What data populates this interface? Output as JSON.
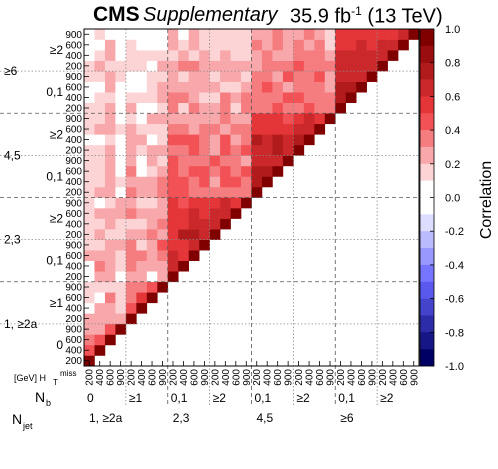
{
  "header": {
    "experiment": "CMS",
    "label": "Supplementary",
    "lumi_value": "35.9 fb",
    "lumi_exp": "-1",
    "energy": "(13 TeV)"
  },
  "chart_data": {
    "type": "heatmap",
    "colorbar": {
      "label": "Correlation",
      "range": [
        -1.0,
        1.0
      ],
      "ticks": [
        "1.0",
        "0.8",
        "0.6",
        "0.4",
        "0.2",
        "0.0",
        "-0.2",
        "-0.4",
        "-0.6",
        "-0.8",
        "-1.0"
      ]
    },
    "axis_labels": {
      "ht_label": "[GeV] H",
      "ht_sub": "T",
      "ht_sup": "miss",
      "nb_label": "N",
      "nb_sub": "b",
      "njet_label": "N",
      "njet_sub": "jet"
    },
    "ht_bins": [
      "200",
      "400",
      "600",
      "900"
    ],
    "x_nb_labels": [
      "0",
      "≥1",
      "0,1",
      "≥2",
      "0,1",
      "≥2",
      "0,1",
      "≥2"
    ],
    "x_njet_labels": [
      "1, ≥2a",
      "2,3",
      "4,5",
      "≥6"
    ],
    "y_nb_labels": [
      "≥2",
      "0,1",
      "≥2",
      "0,1",
      "≥2",
      "0,1",
      "≥1",
      "0"
    ],
    "y_njet_labels": [
      "≥6",
      "4,5",
      "2,3",
      "1, ≥2a"
    ],
    "matrix": [
      [
        1.0,
        0.46,
        0.3,
        0.23,
        0.24,
        0.04,
        0.11,
        0.15,
        0.06,
        0.07,
        0.2,
        0.15,
        0.12,
        0.17,
        0.15,
        0.16,
        0.12,
        0.11,
        0.15,
        0.11,
        0.14,
        0.08,
        0.11,
        0.14,
        0.11,
        0.07,
        0.06,
        0.15,
        0.11,
        0.04,
        0.06,
        0.05
      ],
      [
        0.46,
        1.0,
        0.4,
        0.28,
        0.24,
        0.28,
        0.07,
        0.18,
        0.25,
        0.36,
        0.23,
        0.14,
        0.27,
        0.16,
        0.28,
        0.09,
        0.26,
        0.12,
        0.1,
        0.12,
        0.16,
        0.07,
        0.23,
        0.15,
        0.16,
        0.17,
        0.05,
        0.12,
        0.23,
        0.11,
        0.08,
        0.11
      ],
      [
        0.3,
        0.4,
        1.0,
        0.48,
        0.28,
        0.21,
        0.31,
        0.19,
        0.24,
        0.26,
        0.28,
        0.23,
        0.16,
        0.21,
        0.24,
        0.15,
        0.29,
        0.2,
        0.24,
        0.25,
        0.21,
        0.17,
        0.2,
        0.26,
        0.26,
        0.15,
        0.23,
        0.25,
        0.13,
        0.21,
        0.26,
        0.07
      ],
      [
        0.23,
        0.28,
        0.48,
        1.0,
        0.25,
        0.1,
        0.12,
        0.19,
        0.01,
        0.16,
        0.13,
        0.26,
        0.15,
        0.18,
        0.26,
        0.2,
        0.04,
        0.14,
        0.09,
        -0.01,
        0.05,
        0.04,
        0.19,
        0.0,
        0.09,
        -0.06,
        0.07,
        0.12,
        0.11,
        -0.03,
        0.05,
        0.06
      ],
      [
        0.24,
        0.24,
        0.28,
        0.25,
        1.0,
        0.45,
        0.3,
        0.34,
        0.25,
        0.34,
        0.34,
        0.32,
        0.27,
        0.18,
        0.31,
        0.26,
        0.38,
        0.23,
        0.3,
        0.27,
        0.26,
        0.24,
        0.2,
        0.1,
        0.22,
        0.12,
        0.09,
        0.05,
        0.12,
        0.19,
        0.11,
        0.06
      ],
      [
        0.04,
        0.28,
        0.21,
        0.1,
        0.45,
        1.0,
        0.52,
        0.37,
        0.24,
        0.2,
        0.3,
        0.19,
        0.2,
        0.16,
        0.23,
        0.15,
        0.23,
        0.24,
        0.08,
        0.09,
        0.15,
        0.28,
        0.13,
        0.03,
        0.06,
        0.17,
        0.08,
        0.01,
        0.12,
        0.14,
        0.02,
        0.07
      ],
      [
        0.11,
        0.07,
        0.31,
        0.12,
        0.3,
        0.52,
        1.0,
        0.49,
        0.07,
        0.26,
        0.25,
        0.27,
        0.31,
        0.27,
        0.29,
        0.17,
        0.22,
        0.22,
        0.19,
        0.21,
        0.2,
        0.09,
        0.15,
        0.22,
        0.08,
        0.12,
        0.16,
        0.11,
        0.01,
        0.12,
        0.06,
        0.02
      ],
      [
        0.15,
        0.18,
        0.19,
        0.19,
        0.34,
        0.37,
        0.49,
        1.0,
        0.25,
        0.23,
        0.36,
        0.41,
        0.26,
        0.3,
        0.21,
        0.24,
        0.33,
        0.33,
        0.22,
        0.14,
        0.25,
        0.14,
        0.12,
        0.2,
        0.16,
        0.23,
        0.2,
        0.17,
        0.24,
        0.11,
        0.09,
        0.04
      ],
      [
        0.06,
        0.25,
        0.24,
        0.01,
        0.25,
        0.24,
        0.07,
        0.25,
        1.0,
        0.67,
        0.68,
        0.51,
        0.52,
        0.54,
        0.58,
        0.53,
        0.44,
        0.41,
        0.43,
        0.44,
        0.39,
        0.45,
        0.38,
        0.26,
        0.33,
        0.32,
        0.26,
        0.24,
        0.29,
        0.17,
        0.23,
        0.21
      ],
      [
        0.07,
        0.36,
        0.26,
        0.16,
        0.34,
        0.2,
        0.26,
        0.23,
        0.67,
        1.0,
        0.57,
        0.55,
        0.71,
        0.54,
        0.52,
        0.43,
        0.4,
        0.44,
        0.35,
        0.35,
        0.36,
        0.41,
        0.37,
        0.28,
        0.19,
        0.3,
        0.28,
        0.16,
        0.31,
        0.28,
        0.13,
        0.09
      ],
      [
        0.2,
        0.23,
        0.28,
        0.13,
        0.34,
        0.3,
        0.25,
        0.36,
        0.68,
        0.57,
        1.0,
        0.62,
        0.73,
        0.69,
        0.61,
        0.53,
        0.31,
        0.38,
        0.42,
        0.36,
        0.43,
        0.45,
        0.29,
        0.25,
        0.37,
        0.25,
        0.21,
        0.22,
        0.35,
        0.19,
        0.26,
        0.24
      ],
      [
        0.15,
        0.14,
        0.23,
        0.26,
        0.32,
        0.19,
        0.27,
        0.41,
        0.51,
        0.55,
        0.62,
        1.0,
        0.69,
        0.61,
        0.56,
        0.58,
        0.34,
        0.4,
        0.4,
        0.36,
        0.37,
        0.38,
        0.33,
        0.21,
        0.22,
        0.15,
        0.27,
        0.27,
        0.26,
        0.23,
        0.12,
        0.15
      ],
      [
        0.12,
        0.27,
        0.16,
        0.15,
        0.27,
        0.2,
        0.31,
        0.26,
        0.52,
        0.71,
        0.73,
        0.69,
        1.0,
        0.63,
        0.66,
        0.52,
        0.38,
        0.29,
        0.33,
        0.41,
        0.25,
        0.29,
        0.31,
        0.24,
        0.23,
        0.14,
        0.29,
        0.13,
        0.25,
        0.11,
        0.1,
        0.12
      ],
      [
        0.17,
        0.16,
        0.21,
        0.18,
        0.18,
        0.16,
        0.27,
        0.3,
        0.54,
        0.54,
        0.69,
        0.61,
        0.63,
        1.0,
        0.62,
        0.61,
        0.39,
        0.47,
        0.4,
        0.37,
        0.43,
        0.45,
        0.26,
        0.37,
        0.33,
        0.34,
        0.17,
        0.21,
        0.22,
        0.24,
        0.14,
        0.16
      ],
      [
        0.15,
        0.28,
        0.24,
        0.26,
        0.31,
        0.23,
        0.29,
        0.21,
        0.58,
        0.52,
        0.61,
        0.56,
        0.66,
        0.62,
        1.0,
        0.58,
        0.34,
        0.4,
        0.32,
        0.3,
        0.32,
        0.25,
        0.38,
        0.2,
        0.18,
        0.21,
        0.16,
        0.23,
        0.26,
        0.17,
        0.13,
        0.17
      ],
      [
        0.16,
        0.09,
        0.15,
        0.2,
        0.26,
        0.15,
        0.17,
        0.24,
        0.53,
        0.43,
        0.53,
        0.58,
        0.52,
        0.61,
        0.58,
        1.0,
        0.39,
        0.34,
        0.44,
        0.25,
        0.43,
        0.38,
        0.38,
        0.22,
        0.3,
        0.3,
        0.21,
        0.18,
        0.21,
        0.19,
        0.13,
        0.14
      ],
      [
        0.12,
        0.26,
        0.29,
        0.04,
        0.38,
        0.23,
        0.22,
        0.33,
        0.44,
        0.4,
        0.31,
        0.34,
        0.38,
        0.39,
        0.34,
        0.39,
        1.0,
        0.73,
        0.7,
        0.6,
        0.63,
        0.72,
        0.56,
        0.58,
        0.37,
        0.39,
        0.32,
        0.33,
        0.27,
        0.28,
        0.37,
        0.22
      ],
      [
        0.11,
        0.12,
        0.2,
        0.14,
        0.23,
        0.24,
        0.22,
        0.33,
        0.41,
        0.44,
        0.38,
        0.4,
        0.29,
        0.47,
        0.4,
        0.34,
        0.73,
        1.0,
        0.71,
        0.63,
        0.68,
        0.64,
        0.5,
        0.56,
        0.36,
        0.38,
        0.4,
        0.37,
        0.36,
        0.34,
        0.23,
        0.27
      ],
      [
        0.15,
        0.1,
        0.24,
        0.09,
        0.3,
        0.08,
        0.19,
        0.22,
        0.43,
        0.35,
        0.42,
        0.4,
        0.33,
        0.4,
        0.32,
        0.44,
        0.7,
        0.71,
        1.0,
        0.69,
        0.72,
        0.71,
        0.54,
        0.54,
        0.41,
        0.38,
        0.3,
        0.28,
        0.35,
        0.29,
        0.3,
        0.3
      ],
      [
        0.11,
        0.12,
        0.25,
        -0.01,
        0.27,
        0.09,
        0.21,
        0.14,
        0.44,
        0.35,
        0.36,
        0.36,
        0.41,
        0.37,
        0.3,
        0.25,
        0.6,
        0.63,
        0.69,
        1.0,
        0.65,
        0.62,
        0.57,
        0.49,
        0.34,
        0.42,
        0.23,
        0.41,
        0.33,
        0.23,
        0.25,
        0.24
      ],
      [
        0.14,
        0.16,
        0.21,
        0.05,
        0.26,
        0.15,
        0.2,
        0.25,
        0.39,
        0.36,
        0.43,
        0.37,
        0.25,
        0.43,
        0.32,
        0.43,
        0.63,
        0.68,
        0.72,
        0.65,
        1.0,
        0.71,
        0.62,
        0.59,
        0.33,
        0.43,
        0.38,
        0.33,
        0.44,
        0.3,
        0.36,
        0.24
      ],
      [
        0.08,
        0.07,
        0.17,
        0.04,
        0.24,
        0.28,
        0.09,
        0.14,
        0.45,
        0.41,
        0.45,
        0.38,
        0.29,
        0.45,
        0.25,
        0.38,
        0.72,
        0.64,
        0.71,
        0.62,
        0.71,
        1.0,
        0.68,
        0.62,
        0.43,
        0.39,
        0.39,
        0.33,
        0.3,
        0.37,
        0.27,
        0.3
      ],
      [
        0.11,
        0.23,
        0.2,
        0.19,
        0.2,
        0.13,
        0.15,
        0.12,
        0.38,
        0.37,
        0.29,
        0.33,
        0.31,
        0.26,
        0.38,
        0.38,
        0.56,
        0.5,
        0.54,
        0.57,
        0.62,
        0.68,
        1.0,
        0.59,
        0.37,
        0.3,
        0.3,
        0.4,
        0.36,
        0.33,
        0.31,
        0.25
      ],
      [
        0.14,
        0.15,
        0.26,
        0.0,
        0.1,
        0.03,
        0.22,
        0.2,
        0.26,
        0.28,
        0.25,
        0.21,
        0.24,
        0.37,
        0.2,
        0.22,
        0.58,
        0.56,
        0.54,
        0.49,
        0.59,
        0.62,
        0.59,
        1.0,
        0.32,
        0.31,
        0.29,
        0.21,
        0.3,
        0.24,
        0.16,
        0.18
      ],
      [
        0.11,
        0.16,
        0.26,
        0.09,
        0.22,
        0.06,
        0.08,
        0.16,
        0.33,
        0.19,
        0.37,
        0.22,
        0.23,
        0.33,
        0.18,
        0.3,
        0.37,
        0.36,
        0.41,
        0.34,
        0.33,
        0.43,
        0.37,
        0.32,
        1.0,
        0.73,
        0.72,
        0.62,
        0.64,
        0.62,
        0.51,
        0.52
      ],
      [
        0.07,
        0.17,
        0.15,
        -0.06,
        0.12,
        0.17,
        0.12,
        0.23,
        0.32,
        0.3,
        0.25,
        0.15,
        0.14,
        0.34,
        0.21,
        0.3,
        0.39,
        0.38,
        0.38,
        0.42,
        0.43,
        0.39,
        0.3,
        0.31,
        0.73,
        1.0,
        0.74,
        0.64,
        0.6,
        0.62,
        0.54,
        0.54
      ],
      [
        0.06,
        0.05,
        0.23,
        0.07,
        0.09,
        0.08,
        0.16,
        0.2,
        0.26,
        0.28,
        0.21,
        0.27,
        0.29,
        0.17,
        0.16,
        0.21,
        0.32,
        0.4,
        0.3,
        0.23,
        0.38,
        0.39,
        0.3,
        0.29,
        0.72,
        0.74,
        1.0,
        0.69,
        0.68,
        0.66,
        0.62,
        0.54
      ],
      [
        0.15,
        0.12,
        0.25,
        0.12,
        0.05,
        0.01,
        0.11,
        0.17,
        0.24,
        0.16,
        0.22,
        0.27,
        0.13,
        0.21,
        0.23,
        0.18,
        0.33,
        0.37,
        0.28,
        0.41,
        0.33,
        0.33,
        0.4,
        0.21,
        0.62,
        0.64,
        0.69,
        1.0,
        0.6,
        0.61,
        0.51,
        0.55
      ],
      [
        0.11,
        0.23,
        0.13,
        0.11,
        0.12,
        0.12,
        0.01,
        0.24,
        0.29,
        0.31,
        0.35,
        0.26,
        0.25,
        0.22,
        0.26,
        0.21,
        0.27,
        0.36,
        0.35,
        0.33,
        0.44,
        0.3,
        0.36,
        0.3,
        0.64,
        0.6,
        0.68,
        0.6,
        1.0,
        0.68,
        0.61,
        0.53
      ],
      [
        0.04,
        0.11,
        0.21,
        -0.03,
        0.19,
        0.14,
        0.12,
        0.11,
        0.17,
        0.28,
        0.19,
        0.23,
        0.11,
        0.24,
        0.17,
        0.19,
        0.28,
        0.34,
        0.29,
        0.23,
        0.3,
        0.37,
        0.33,
        0.24,
        0.62,
        0.62,
        0.66,
        0.61,
        0.68,
        1.0,
        0.66,
        0.58
      ],
      [
        0.06,
        0.08,
        0.26,
        0.05,
        0.11,
        0.02,
        0.06,
        0.09,
        0.23,
        0.13,
        0.26,
        0.12,
        0.1,
        0.14,
        0.13,
        0.13,
        0.37,
        0.23,
        0.3,
        0.25,
        0.36,
        0.27,
        0.31,
        0.16,
        0.51,
        0.54,
        0.62,
        0.51,
        0.61,
        0.66,
        1.0,
        0.68
      ],
      [
        0.05,
        0.11,
        0.07,
        0.06,
        0.06,
        0.07,
        0.02,
        0.04,
        0.21,
        0.09,
        0.24,
        0.15,
        0.12,
        0.16,
        0.17,
        0.14,
        0.22,
        0.27,
        0.3,
        0.24,
        0.24,
        0.3,
        0.25,
        0.18,
        0.52,
        0.54,
        0.54,
        0.55,
        0.53,
        0.58,
        0.68,
        1.0
      ]
    ]
  }
}
